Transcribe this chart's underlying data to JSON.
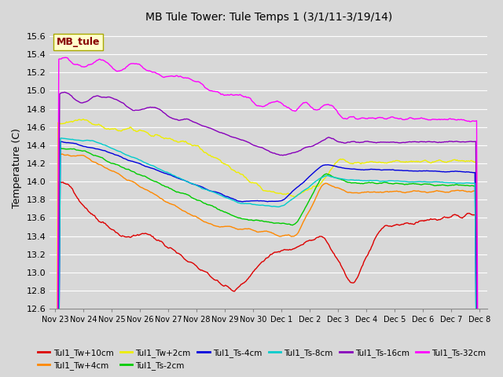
{
  "title": "MB Tule Tower: Tule Temps 1 (3/1/11-3/19/14)",
  "ylabel": "Temperature (C)",
  "ylim": [
    12.6,
    15.7
  ],
  "background_color": "#d8d8d8",
  "plot_bg_color": "#d8d8d8",
  "grid_color": "#ffffff",
  "x_labels": [
    "Nov 23",
    "Nov 24",
    "Nov 25",
    "Nov 26",
    "Nov 27",
    "Nov 28",
    "Nov 29",
    "Nov 30",
    "Dec 1",
    "Dec 2",
    "Dec 3",
    "Dec 4",
    "Dec 5",
    "Dec 6",
    "Dec 7",
    "Dec 8"
  ],
  "series_colors": {
    "Tul1_Tw+10cm": "#dd0000",
    "Tul1_Tw+4cm": "#ff8800",
    "Tul1_Tw+2cm": "#eeee00",
    "Tul1_Ts-2cm": "#00cc00",
    "Tul1_Ts-4cm": "#0000dd",
    "Tul1_Ts-8cm": "#00cccc",
    "Tul1_Ts-16cm": "#8800bb",
    "Tul1_Ts-32cm": "#ff00ff"
  },
  "legend_box": {
    "label": "MB_tule",
    "facecolor": "#ffffcc",
    "edgecolor": "#aaaa00"
  },
  "yticks": [
    12.6,
    12.8,
    13.0,
    13.2,
    13.4,
    13.6,
    13.8,
    14.0,
    14.2,
    14.4,
    14.6,
    14.8,
    15.0,
    15.2,
    15.4,
    15.6
  ],
  "lw": 1.0
}
